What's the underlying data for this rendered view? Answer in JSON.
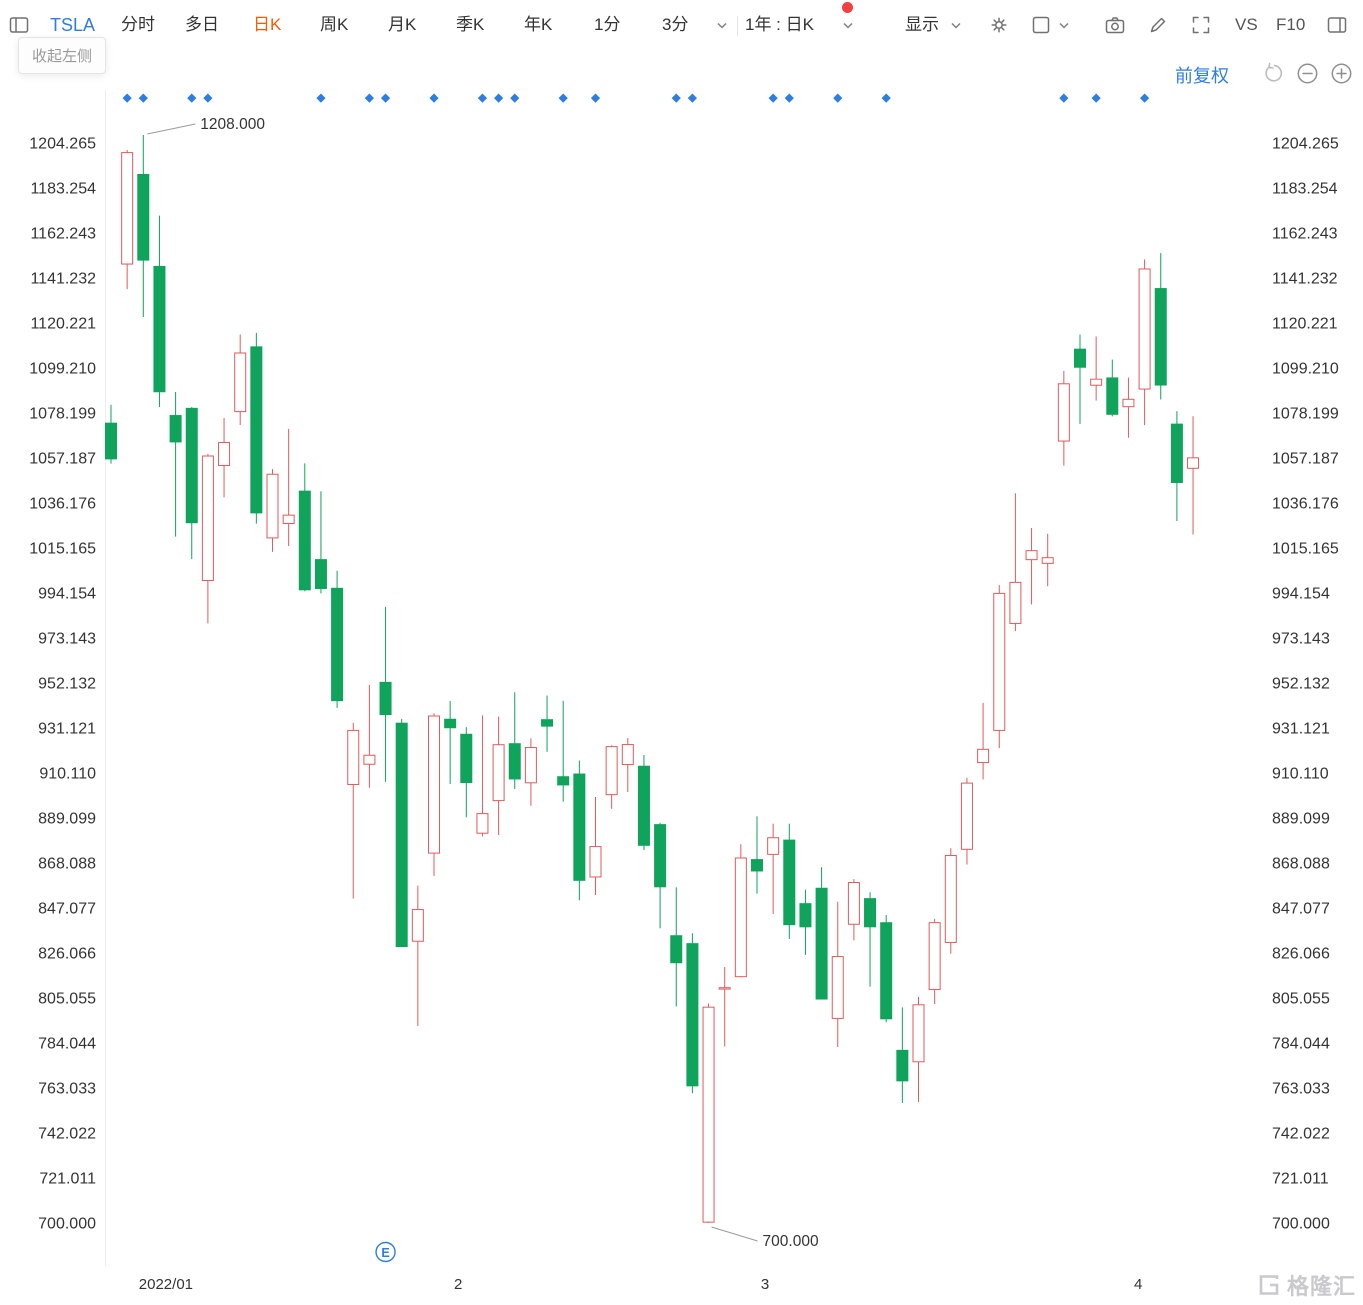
{
  "window": {
    "collapse_tooltip": "收起左侧"
  },
  "toolbar": {
    "symbol": "TSLA",
    "tabs": [
      "分时",
      "多日",
      "日K",
      "周K",
      "月K",
      "季K",
      "年K",
      "1分",
      "3分"
    ],
    "active_tab": "日K",
    "range_selector": "1年 : 日K",
    "display_label": "显示",
    "vs_label": "VS",
    "f10_label": "F10",
    "has_notification_dot": true
  },
  "controls": {
    "adjustment_label": "前复权"
  },
  "watermark": {
    "brand": "格隆汇"
  },
  "colors": {
    "up": "#e05b5b",
    "down": "#0fa35c",
    "accent_blue": "#2e7de0",
    "active_tab_orange": "#ff5a00",
    "axis_text": "#333333"
  },
  "chart_data": {
    "type": "candlestick",
    "symbol": "TSLA",
    "range_label": "1年",
    "period_label": "日K",
    "adjustment": "前复权",
    "ylim": [
      700.0,
      1204.265
    ],
    "y_ticks": [
      "1204.265",
      "1183.254",
      "1162.243",
      "1141.232",
      "1120.221",
      "1099.210",
      "1078.199",
      "1057.187",
      "1036.176",
      "1015.165",
      "994.154",
      "973.143",
      "952.132",
      "931.121",
      "910.110",
      "889.099",
      "868.088",
      "847.077",
      "826.066",
      "805.055",
      "784.044",
      "763.033",
      "742.022",
      "721.011",
      "700.000"
    ],
    "x_ticks": [
      {
        "label": "2022/01",
        "i": 3.4
      },
      {
        "label": "2",
        "i": 21.5
      },
      {
        "label": "3",
        "i": 40.5
      },
      {
        "label": "4",
        "i": 63.6
      }
    ],
    "annotations": {
      "high": {
        "label": "1208.000",
        "candle_index": 2
      },
      "low": {
        "label": "700.000",
        "candle_index": 37
      }
    },
    "event_markers": {
      "earnings": {
        "label": "E",
        "candle_index": 17
      },
      "diamond_candle_indices": [
        1,
        2,
        5,
        6,
        13,
        16,
        17,
        20,
        23,
        24,
        25,
        28,
        30,
        35,
        36,
        41,
        42,
        45,
        48,
        59,
        61,
        64
      ]
    },
    "candles": [
      {
        "d": "2021-12-31",
        "o": 1073.44,
        "h": 1082.0,
        "l": 1054.59,
        "c": 1056.78
      },
      {
        "d": "2022-01-03",
        "o": 1147.75,
        "h": 1201.07,
        "l": 1136.04,
        "c": 1199.78
      },
      {
        "d": "2022-01-04",
        "o": 1189.55,
        "h": 1208.0,
        "l": 1123.05,
        "c": 1149.59
      },
      {
        "d": "2022-01-05",
        "o": 1146.65,
        "h": 1170.34,
        "l": 1081.01,
        "c": 1088.12
      },
      {
        "d": "2022-01-06",
        "o": 1077.0,
        "h": 1088.0,
        "l": 1020.5,
        "c": 1064.7
      },
      {
        "d": "2022-01-07",
        "o": 1080.37,
        "h": 1080.93,
        "l": 1010.0,
        "c": 1026.96
      },
      {
        "d": "2022-01-10",
        "o": 1000.0,
        "h": 1059.1,
        "l": 980.0,
        "c": 1058.12
      },
      {
        "d": "2022-01-11",
        "o": 1053.67,
        "h": 1075.85,
        "l": 1038.82,
        "c": 1064.4
      },
      {
        "d": "2022-01-12",
        "o": 1078.85,
        "h": 1114.84,
        "l": 1072.59,
        "c": 1106.22
      },
      {
        "d": "2022-01-13",
        "o": 1109.07,
        "h": 1115.6,
        "l": 1026.54,
        "c": 1031.56
      },
      {
        "d": "2022-01-14",
        "o": 1019.88,
        "h": 1052.0,
        "l": 1013.38,
        "c": 1049.61
      },
      {
        "d": "2022-01-18",
        "o": 1026.61,
        "h": 1070.79,
        "l": 1016.06,
        "c": 1030.51
      },
      {
        "d": "2022-01-19",
        "o": 1041.71,
        "h": 1054.67,
        "l": 995.0,
        "c": 995.65
      },
      {
        "d": "2022-01-20",
        "o": 1009.73,
        "h": 1041.66,
        "l": 994.0,
        "c": 996.27
      },
      {
        "d": "2022-01-21",
        "o": 996.34,
        "h": 1004.55,
        "l": 940.5,
        "c": 943.9
      },
      {
        "d": "2022-01-24",
        "o": 904.76,
        "h": 933.51,
        "l": 851.47,
        "c": 930.0
      },
      {
        "d": "2022-01-25",
        "o": 914.2,
        "h": 951.26,
        "l": 903.21,
        "c": 918.4
      },
      {
        "d": "2022-01-26",
        "o": 952.43,
        "h": 987.69,
        "l": 906.0,
        "c": 937.41
      },
      {
        "d": "2022-01-27",
        "o": 933.36,
        "h": 935.39,
        "l": 829.0,
        "c": 829.1
      },
      {
        "d": "2022-01-28",
        "o": 831.56,
        "h": 857.5,
        "l": 792.01,
        "c": 846.35
      },
      {
        "d": "2022-01-31",
        "o": 872.71,
        "h": 937.99,
        "l": 862.05,
        "c": 936.72
      },
      {
        "d": "2022-02-01",
        "o": 935.21,
        "h": 943.7,
        "l": 905.0,
        "c": 931.25
      },
      {
        "d": "2022-02-02",
        "o": 928.18,
        "h": 931.5,
        "l": 889.41,
        "c": 905.66
      },
      {
        "d": "2022-02-03",
        "o": 882.0,
        "h": 937.0,
        "l": 880.52,
        "c": 891.14
      },
      {
        "d": "2022-02-04",
        "o": 897.22,
        "h": 936.5,
        "l": 881.17,
        "c": 923.32
      },
      {
        "d": "2022-02-07",
        "o": 923.79,
        "h": 947.77,
        "l": 902.66,
        "c": 907.34
      },
      {
        "d": "2022-02-08",
        "o": 905.53,
        "h": 926.29,
        "l": 894.8,
        "c": 922.0
      },
      {
        "d": "2022-02-09",
        "o": 935.0,
        "h": 946.27,
        "l": 920.0,
        "c": 932.0
      },
      {
        "d": "2022-02-10",
        "o": 908.37,
        "h": 943.81,
        "l": 896.7,
        "c": 904.55
      },
      {
        "d": "2022-02-11",
        "o": 909.63,
        "h": 915.96,
        "l": 850.7,
        "c": 860.0
      },
      {
        "d": "2022-02-14",
        "o": 861.57,
        "h": 898.88,
        "l": 853.15,
        "c": 875.76
      },
      {
        "d": "2022-02-15",
        "o": 900.0,
        "h": 923.0,
        "l": 893.38,
        "c": 922.43
      },
      {
        "d": "2022-02-16",
        "o": 914.05,
        "h": 926.43,
        "l": 901.21,
        "c": 923.39
      },
      {
        "d": "2022-02-17",
        "o": 913.26,
        "h": 918.5,
        "l": 874.1,
        "c": 876.35
      },
      {
        "d": "2022-02-18",
        "o": 886.0,
        "h": 886.87,
        "l": 837.61,
        "c": 856.98
      },
      {
        "d": "2022-02-22",
        "o": 834.13,
        "h": 856.73,
        "l": 801.1,
        "c": 821.53
      },
      {
        "d": "2022-02-23",
        "o": 830.43,
        "h": 835.3,
        "l": 760.56,
        "c": 764.04
      },
      {
        "d": "2022-02-24",
        "o": 700.39,
        "h": 802.48,
        "l": 700.0,
        "c": 800.77
      },
      {
        "d": "2022-02-25",
        "o": 809.23,
        "h": 819.5,
        "l": 782.4,
        "c": 809.87
      },
      {
        "d": "2022-02-28",
        "o": 815.01,
        "h": 876.86,
        "l": 814.71,
        "c": 870.43
      },
      {
        "d": "2022-03-01",
        "o": 869.68,
        "h": 889.88,
        "l": 853.78,
        "c": 864.37
      },
      {
        "d": "2022-03-02",
        "o": 872.13,
        "h": 886.48,
        "l": 844.27,
        "c": 879.89
      },
      {
        "d": "2022-03-03",
        "o": 878.77,
        "h": 886.44,
        "l": 832.6,
        "c": 839.29
      },
      {
        "d": "2022-03-04",
        "o": 849.1,
        "h": 855.65,
        "l": 825.16,
        "c": 838.29
      },
      {
        "d": "2022-03-07",
        "o": 856.3,
        "h": 866.14,
        "l": 804.9,
        "c": 804.58
      },
      {
        "d": "2022-03-08",
        "o": 795.53,
        "h": 849.99,
        "l": 782.17,
        "c": 824.4
      },
      {
        "d": "2022-03-09",
        "o": 839.48,
        "h": 860.56,
        "l": 832.01,
        "c": 858.97
      },
      {
        "d": "2022-03-10",
        "o": 851.45,
        "h": 854.45,
        "l": 810.36,
        "c": 838.3
      },
      {
        "d": "2022-03-11",
        "o": 840.2,
        "h": 843.8,
        "l": 793.77,
        "c": 795.35
      },
      {
        "d": "2022-03-14",
        "o": 780.61,
        "h": 800.7,
        "l": 756.04,
        "c": 766.37
      },
      {
        "d": "2022-03-15",
        "o": 775.27,
        "h": 805.57,
        "l": 756.57,
        "c": 801.89
      },
      {
        "d": "2022-03-16",
        "o": 809.0,
        "h": 842.0,
        "l": 802.26,
        "c": 840.23
      },
      {
        "d": "2022-03-17",
        "o": 830.99,
        "h": 875.0,
        "l": 825.72,
        "c": 871.6
      },
      {
        "d": "2022-03-18",
        "o": 874.49,
        "h": 907.85,
        "l": 867.39,
        "c": 905.39
      },
      {
        "d": "2022-03-21",
        "o": 914.98,
        "h": 942.85,
        "l": 907.09,
        "c": 921.16
      },
      {
        "d": "2022-03-22",
        "o": 930.0,
        "h": 997.86,
        "l": 921.75,
        "c": 993.98
      },
      {
        "d": "2022-03-23",
        "o": 979.94,
        "h": 1040.7,
        "l": 976.4,
        "c": 999.11
      },
      {
        "d": "2022-03-24",
        "o": 1009.73,
        "h": 1024.49,
        "l": 988.8,
        "c": 1013.92
      },
      {
        "d": "2022-03-25",
        "o": 1008.0,
        "h": 1021.8,
        "l": 997.32,
        "c": 1010.64
      },
      {
        "d": "2022-03-28",
        "o": 1065.1,
        "h": 1097.88,
        "l": 1053.6,
        "c": 1091.84
      },
      {
        "d": "2022-03-29",
        "o": 1107.99,
        "h": 1114.77,
        "l": 1073.11,
        "c": 1099.57
      },
      {
        "d": "2022-03-30",
        "o": 1091.17,
        "h": 1113.95,
        "l": 1084.0,
        "c": 1093.99
      },
      {
        "d": "2022-03-31",
        "o": 1094.57,
        "h": 1103.14,
        "l": 1076.64,
        "c": 1077.6
      },
      {
        "d": "2022-04-01",
        "o": 1081.15,
        "h": 1094.75,
        "l": 1066.64,
        "c": 1084.59
      },
      {
        "d": "2022-04-04",
        "o": 1089.38,
        "h": 1149.91,
        "l": 1072.52,
        "c": 1145.45
      },
      {
        "d": "2022-04-05",
        "o": 1136.3,
        "h": 1152.87,
        "l": 1084.5,
        "c": 1091.26
      },
      {
        "d": "2022-04-06",
        "o": 1073.0,
        "h": 1079.06,
        "l": 1027.77,
        "c": 1045.76
      },
      {
        "d": "2022-04-07",
        "o": 1052.39,
        "h": 1076.71,
        "l": 1021.44,
        "c": 1057.26
      }
    ]
  }
}
